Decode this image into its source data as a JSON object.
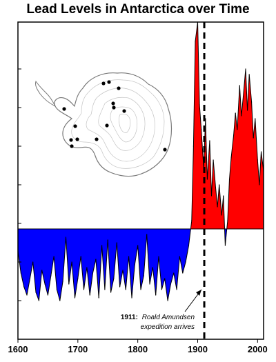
{
  "chart_data": {
    "type": "area",
    "title": "Lead Levels in Antarctica over Time",
    "xlabel": "",
    "ylabel": "",
    "xlim": [
      1600,
      2010
    ],
    "ylim": [
      -4,
      7.5
    ],
    "baseline": 0,
    "x_ticks": [
      1600,
      1700,
      1800,
      1900,
      2000
    ],
    "y_tick_count_note": "unlabeled",
    "colors": {
      "above": "#ff0000",
      "below": "#0000ff",
      "line": "#000000"
    },
    "x": [
      1600,
      1605,
      1610,
      1615,
      1620,
      1625,
      1630,
      1635,
      1640,
      1645,
      1650,
      1655,
      1660,
      1665,
      1670,
      1675,
      1680,
      1685,
      1690,
      1695,
      1700,
      1705,
      1710,
      1715,
      1720,
      1725,
      1730,
      1735,
      1740,
      1745,
      1750,
      1755,
      1760,
      1765,
      1770,
      1775,
      1780,
      1785,
      1790,
      1795,
      1800,
      1805,
      1810,
      1815,
      1820,
      1825,
      1830,
      1835,
      1840,
      1845,
      1850,
      1855,
      1860,
      1865,
      1870,
      1875,
      1880,
      1885,
      1890,
      1893,
      1896,
      1900,
      1903,
      1906,
      1910,
      1913,
      1916,
      1920,
      1923,
      1926,
      1930,
      1933,
      1936,
      1940,
      1943,
      1946,
      1950,
      1953,
      1956,
      1960,
      1963,
      1966,
      1970,
      1973,
      1976,
      1980,
      1983,
      1986,
      1990,
      1993,
      1996,
      2000,
      2003,
      2006,
      2010
    ],
    "values": [
      -0.8,
      -1.6,
      -2.1,
      -2.4,
      -1.8,
      -1.2,
      -2.3,
      -2.6,
      -1.5,
      -2.0,
      -2.4,
      -1.7,
      -1.0,
      -2.2,
      -2.6,
      -1.9,
      -0.3,
      -2.0,
      -1.2,
      -2.5,
      -1.8,
      -1.0,
      -2.2,
      -1.4,
      -2.4,
      -1.6,
      -1.1,
      -2.5,
      -0.6,
      -2.2,
      -0.4,
      -2.3,
      -1.8,
      -0.5,
      -2.1,
      -1.5,
      -2.2,
      -1.0,
      -2.5,
      -1.3,
      -0.6,
      -2.2,
      -1.7,
      -0.2,
      -2.0,
      -1.4,
      -2.4,
      -1.0,
      -2.2,
      -1.8,
      -2.6,
      -2.0,
      -1.6,
      -2.2,
      -1.0,
      -1.6,
      -1.2,
      -0.6,
      0.3,
      3.0,
      6.8,
      7.5,
      4.5,
      3.6,
      2.2,
      4.0,
      1.8,
      3.2,
      1.2,
      2.5,
      1.5,
      0.8,
      1.6,
      0.5,
      1.2,
      -0.6,
      0.3,
      1.8,
      2.6,
      3.4,
      4.2,
      3.6,
      5.2,
      4.1,
      4.8,
      5.8,
      4.3,
      5.6,
      4.6,
      3.3,
      4.0,
      2.5,
      1.6,
      2.8,
      2.1
    ],
    "annotations": [
      {
        "x": 1911,
        "label": "1911:",
        "text_lines": [
          "Roald Amundsen",
          "expedition arrives"
        ]
      }
    ],
    "inset": "map-of-antarctica-with-core-sites"
  }
}
